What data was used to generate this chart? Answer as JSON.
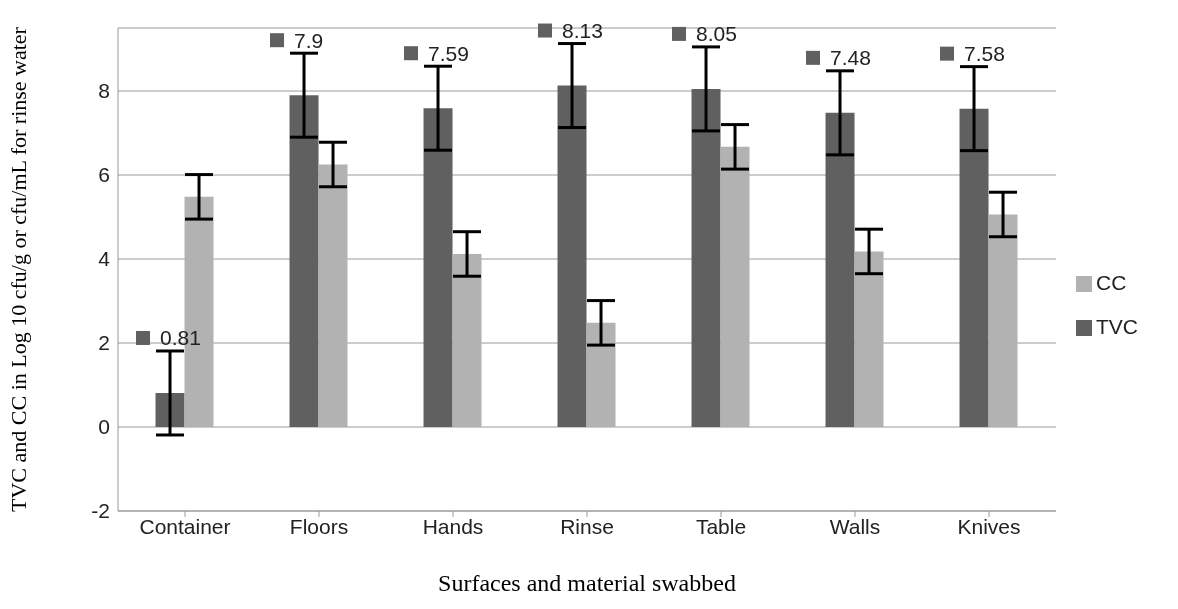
{
  "chart_data": {
    "type": "bar",
    "xlabel": "Surfaces and material swabbed",
    "ylabel": "TVC and CC in Log 10 cfu/g or cfu/mL for rinse water",
    "categories": [
      "Container",
      "Floors",
      "Hands",
      "Rinse",
      "Table",
      "Walls",
      "Knives"
    ],
    "series": [
      {
        "name": "TVC",
        "color": "#606060",
        "values": [
          0.81,
          7.9,
          7.59,
          8.13,
          8.05,
          7.48,
          7.58
        ],
        "errors": [
          1,
          1,
          1,
          1,
          1,
          1,
          1
        ],
        "value_labels": [
          "0.81",
          "7.9",
          "7.59",
          "8.13",
          "8.05",
          "7.48",
          "7.58"
        ]
      },
      {
        "name": "CC",
        "color": "#b2b2b2",
        "values": [
          5.48,
          6.25,
          4.12,
          2.48,
          6.67,
          4.18,
          5.06
        ],
        "errors": [
          0.53,
          0.53,
          0.53,
          0.53,
          0.53,
          0.53,
          0.53
        ]
      }
    ],
    "ylim": [
      -2,
      9.5
    ],
    "yticks": [
      -2,
      0,
      2,
      4,
      6,
      8
    ],
    "grid": "y",
    "legend": "right"
  }
}
